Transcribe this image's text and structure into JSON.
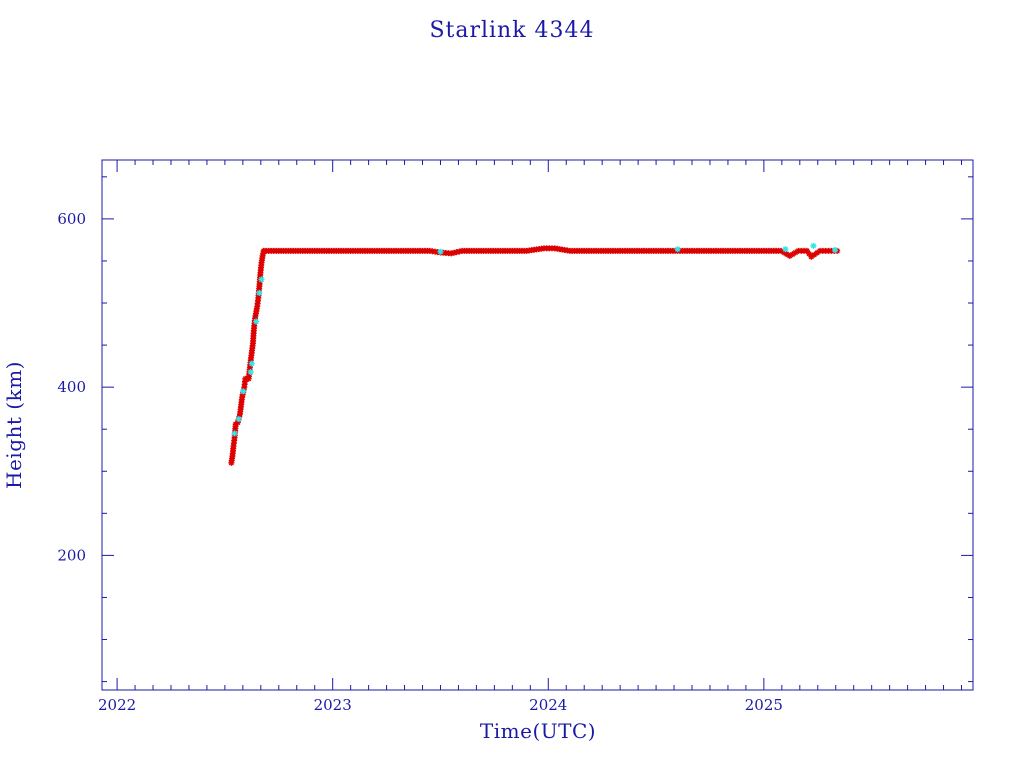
{
  "chart_data": {
    "type": "scatter",
    "title": "Starlink 4344",
    "xlabel": "Time(UTC)",
    "ylabel": "Height (km)",
    "xlim": [
      2021.93,
      2025.97
    ],
    "ylim": [
      40,
      670
    ],
    "xticks": [
      2022,
      2023,
      2024,
      2025
    ],
    "xtick_labels": [
      "2022",
      "2023",
      "2024",
      "2025"
    ],
    "yticks": [
      200,
      400,
      600
    ],
    "ytick_labels": [
      "200",
      "400",
      "600"
    ],
    "grid": false,
    "colors": {
      "axis": "#1a1aa6",
      "series_primary": "#dd0000",
      "series_secondary": "#33e6e6"
    },
    "series": [
      {
        "marker": "asterisk",
        "color": "#dd0000",
        "points": [
          [
            2022.53,
            310
          ],
          [
            2022.535,
            318
          ],
          [
            2022.54,
            330
          ],
          [
            2022.545,
            340
          ],
          [
            2022.55,
            356
          ],
          [
            2022.56,
            358
          ],
          [
            2022.57,
            368
          ],
          [
            2022.58,
            388
          ],
          [
            2022.59,
            400
          ],
          [
            2022.595,
            410
          ],
          [
            2022.61,
            410
          ],
          [
            2022.62,
            432
          ],
          [
            2022.63,
            452
          ],
          [
            2022.635,
            470
          ],
          [
            2022.64,
            482
          ],
          [
            2022.65,
            496
          ],
          [
            2022.655,
            506
          ],
          [
            2022.66,
            520
          ],
          [
            2022.665,
            536
          ],
          [
            2022.67,
            548
          ],
          [
            2022.675,
            556
          ],
          [
            2022.68,
            562
          ],
          [
            2022.75,
            562
          ],
          [
            2022.85,
            562
          ],
          [
            2022.95,
            562
          ],
          [
            2023.05,
            562
          ],
          [
            2023.15,
            562
          ],
          [
            2023.25,
            562
          ],
          [
            2023.35,
            562
          ],
          [
            2023.45,
            562
          ],
          [
            2023.5,
            560
          ],
          [
            2023.55,
            559
          ],
          [
            2023.6,
            562
          ],
          [
            2023.7,
            562
          ],
          [
            2023.8,
            562
          ],
          [
            2023.9,
            562
          ],
          [
            2023.98,
            565
          ],
          [
            2024.03,
            565
          ],
          [
            2024.1,
            562
          ],
          [
            2024.2,
            562
          ],
          [
            2024.3,
            562
          ],
          [
            2024.4,
            562
          ],
          [
            2024.5,
            562
          ],
          [
            2024.6,
            562
          ],
          [
            2024.7,
            562
          ],
          [
            2024.8,
            562
          ],
          [
            2024.9,
            562
          ],
          [
            2025.0,
            562
          ],
          [
            2025.08,
            562
          ],
          [
            2025.12,
            556
          ],
          [
            2025.16,
            562
          ],
          [
            2025.2,
            562
          ],
          [
            2025.22,
            555
          ],
          [
            2025.26,
            562
          ],
          [
            2025.3,
            562
          ],
          [
            2025.34,
            562
          ]
        ]
      },
      {
        "marker": "asterisk",
        "color": "#33e6e6",
        "points": [
          [
            2022.545,
            345
          ],
          [
            2022.565,
            362
          ],
          [
            2022.585,
            395
          ],
          [
            2022.62,
            418
          ],
          [
            2022.625,
            428
          ],
          [
            2022.645,
            478
          ],
          [
            2022.66,
            512
          ],
          [
            2022.67,
            528
          ],
          [
            2023.5,
            561
          ],
          [
            2024.6,
            564
          ],
          [
            2025.1,
            564
          ],
          [
            2025.23,
            568
          ],
          [
            2025.33,
            563
          ]
        ]
      }
    ]
  }
}
